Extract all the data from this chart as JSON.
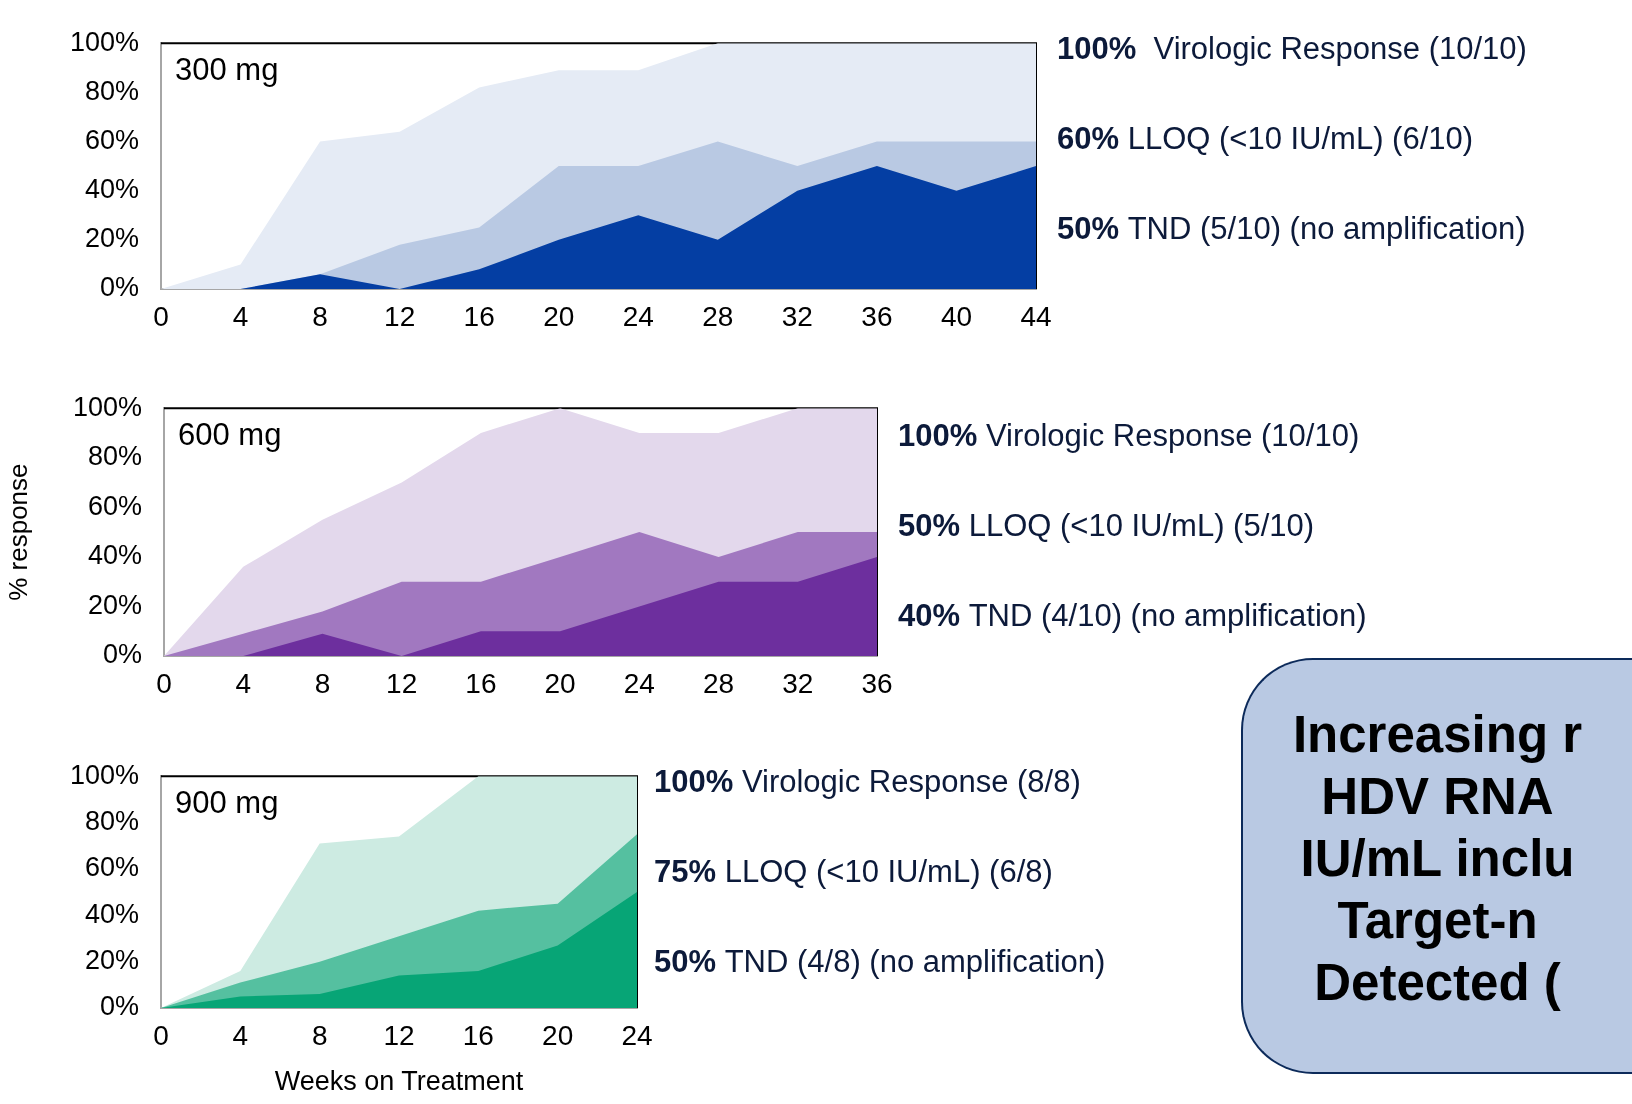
{
  "chart_data": [
    {
      "type": "area",
      "title": "300 mg",
      "x": [
        0,
        4,
        8,
        12,
        16,
        20,
        24,
        28,
        32,
        36,
        40,
        44
      ],
      "xlim": [
        0,
        44
      ],
      "xticks": [
        0,
        4,
        8,
        12,
        16,
        20,
        24,
        28,
        32,
        36,
        40,
        44
      ],
      "ylim": [
        0,
        100
      ],
      "yticks": [
        {
          "value": 0,
          "label": "0%"
        },
        {
          "value": 20,
          "label": "20%"
        },
        {
          "value": 40,
          "label": "40%"
        },
        {
          "value": 60,
          "label": "60%"
        },
        {
          "value": 80,
          "label": "80%"
        },
        {
          "value": 100,
          "label": "100%"
        }
      ],
      "series": [
        {
          "color": "#e5ebf5",
          "values": [
            0,
            10,
            60,
            64,
            82,
            89,
            89,
            100,
            100,
            100,
            100,
            100
          ]
        },
        {
          "color": "#b9c9e3",
          "values": [
            0,
            0,
            6,
            18,
            25,
            50,
            50,
            60,
            50,
            60,
            60,
            60
          ]
        },
        {
          "color": "#043ea3",
          "values": [
            0,
            0,
            6,
            0,
            8,
            20,
            30,
            20,
            40,
            50,
            40,
            50
          ]
        }
      ],
      "annotations": [
        "100%  Virologic Response (10/10)",
        "60% LLOQ (<10 IU/mL) (6/10)",
        "50% TND (5/10) (no amplification)"
      ]
    },
    {
      "type": "area",
      "title": "600 mg",
      "ylabel": "% response",
      "x": [
        0,
        4,
        8,
        12,
        16,
        20,
        24,
        28,
        32,
        36
      ],
      "xlim": [
        0,
        36
      ],
      "xticks": [
        0,
        4,
        8,
        12,
        16,
        20,
        24,
        28,
        32,
        36
      ],
      "ylim": [
        0,
        100
      ],
      "yticks": [
        {
          "value": 0,
          "label": "0%"
        },
        {
          "value": 20,
          "label": "20%"
        },
        {
          "value": 40,
          "label": "40%"
        },
        {
          "value": 60,
          "label": "60%"
        },
        {
          "value": 80,
          "label": "80%"
        },
        {
          "value": 100,
          "label": "100%"
        }
      ],
      "series": [
        {
          "color": "#e3d8ec",
          "values": [
            0,
            36,
            55,
            70,
            90,
            100,
            90,
            90,
            100,
            100
          ]
        },
        {
          "color": "#a178c0",
          "values": [
            0,
            9,
            18,
            30,
            30,
            40,
            50,
            40,
            50,
            50
          ]
        },
        {
          "color": "#6d2f9e",
          "values": [
            0,
            0,
            9,
            0,
            10,
            10,
            20,
            30,
            30,
            40
          ]
        }
      ],
      "annotations": [
        "100% Virologic Response (10/10)",
        "50% LLOQ (<10 IU/mL) (5/10)",
        "40% TND (4/10) (no amplification)"
      ]
    },
    {
      "type": "area",
      "title": "900 mg",
      "xlabel": "Weeks on Treatment",
      "x": [
        0,
        4,
        8,
        12,
        16,
        20,
        24
      ],
      "xlim": [
        0,
        24
      ],
      "xticks": [
        0,
        4,
        8,
        12,
        16,
        20,
        24
      ],
      "ylim": [
        0,
        100
      ],
      "yticks": [
        {
          "value": 0,
          "label": "0%"
        },
        {
          "value": 20,
          "label": "20%"
        },
        {
          "value": 40,
          "label": "40%"
        },
        {
          "value": 60,
          "label": "60%"
        },
        {
          "value": 80,
          "label": "80%"
        },
        {
          "value": 100,
          "label": "100%"
        }
      ],
      "series": [
        {
          "color": "#cdebe2",
          "values": [
            0,
            16,
            71,
            74,
            100,
            100,
            100
          ]
        },
        {
          "color": "#55c0a0",
          "values": [
            0,
            11,
            20,
            31,
            42,
            45,
            75
          ]
        },
        {
          "color": "#07a576",
          "values": [
            0,
            5,
            6,
            14,
            16,
            27,
            50
          ]
        }
      ],
      "annotations": [
        "100% Virologic Response (8/8)",
        "75% LLOQ (<10 IU/mL) (6/8)",
        "50% TND (4/8) (no amplification)"
      ]
    },
    {
      "type": "other",
      "annotations": [
        "Increasing r",
        "HDV RNA",
        "IU/mL inclu",
        "Target-n",
        "Detected ("
      ]
    }
  ]
}
